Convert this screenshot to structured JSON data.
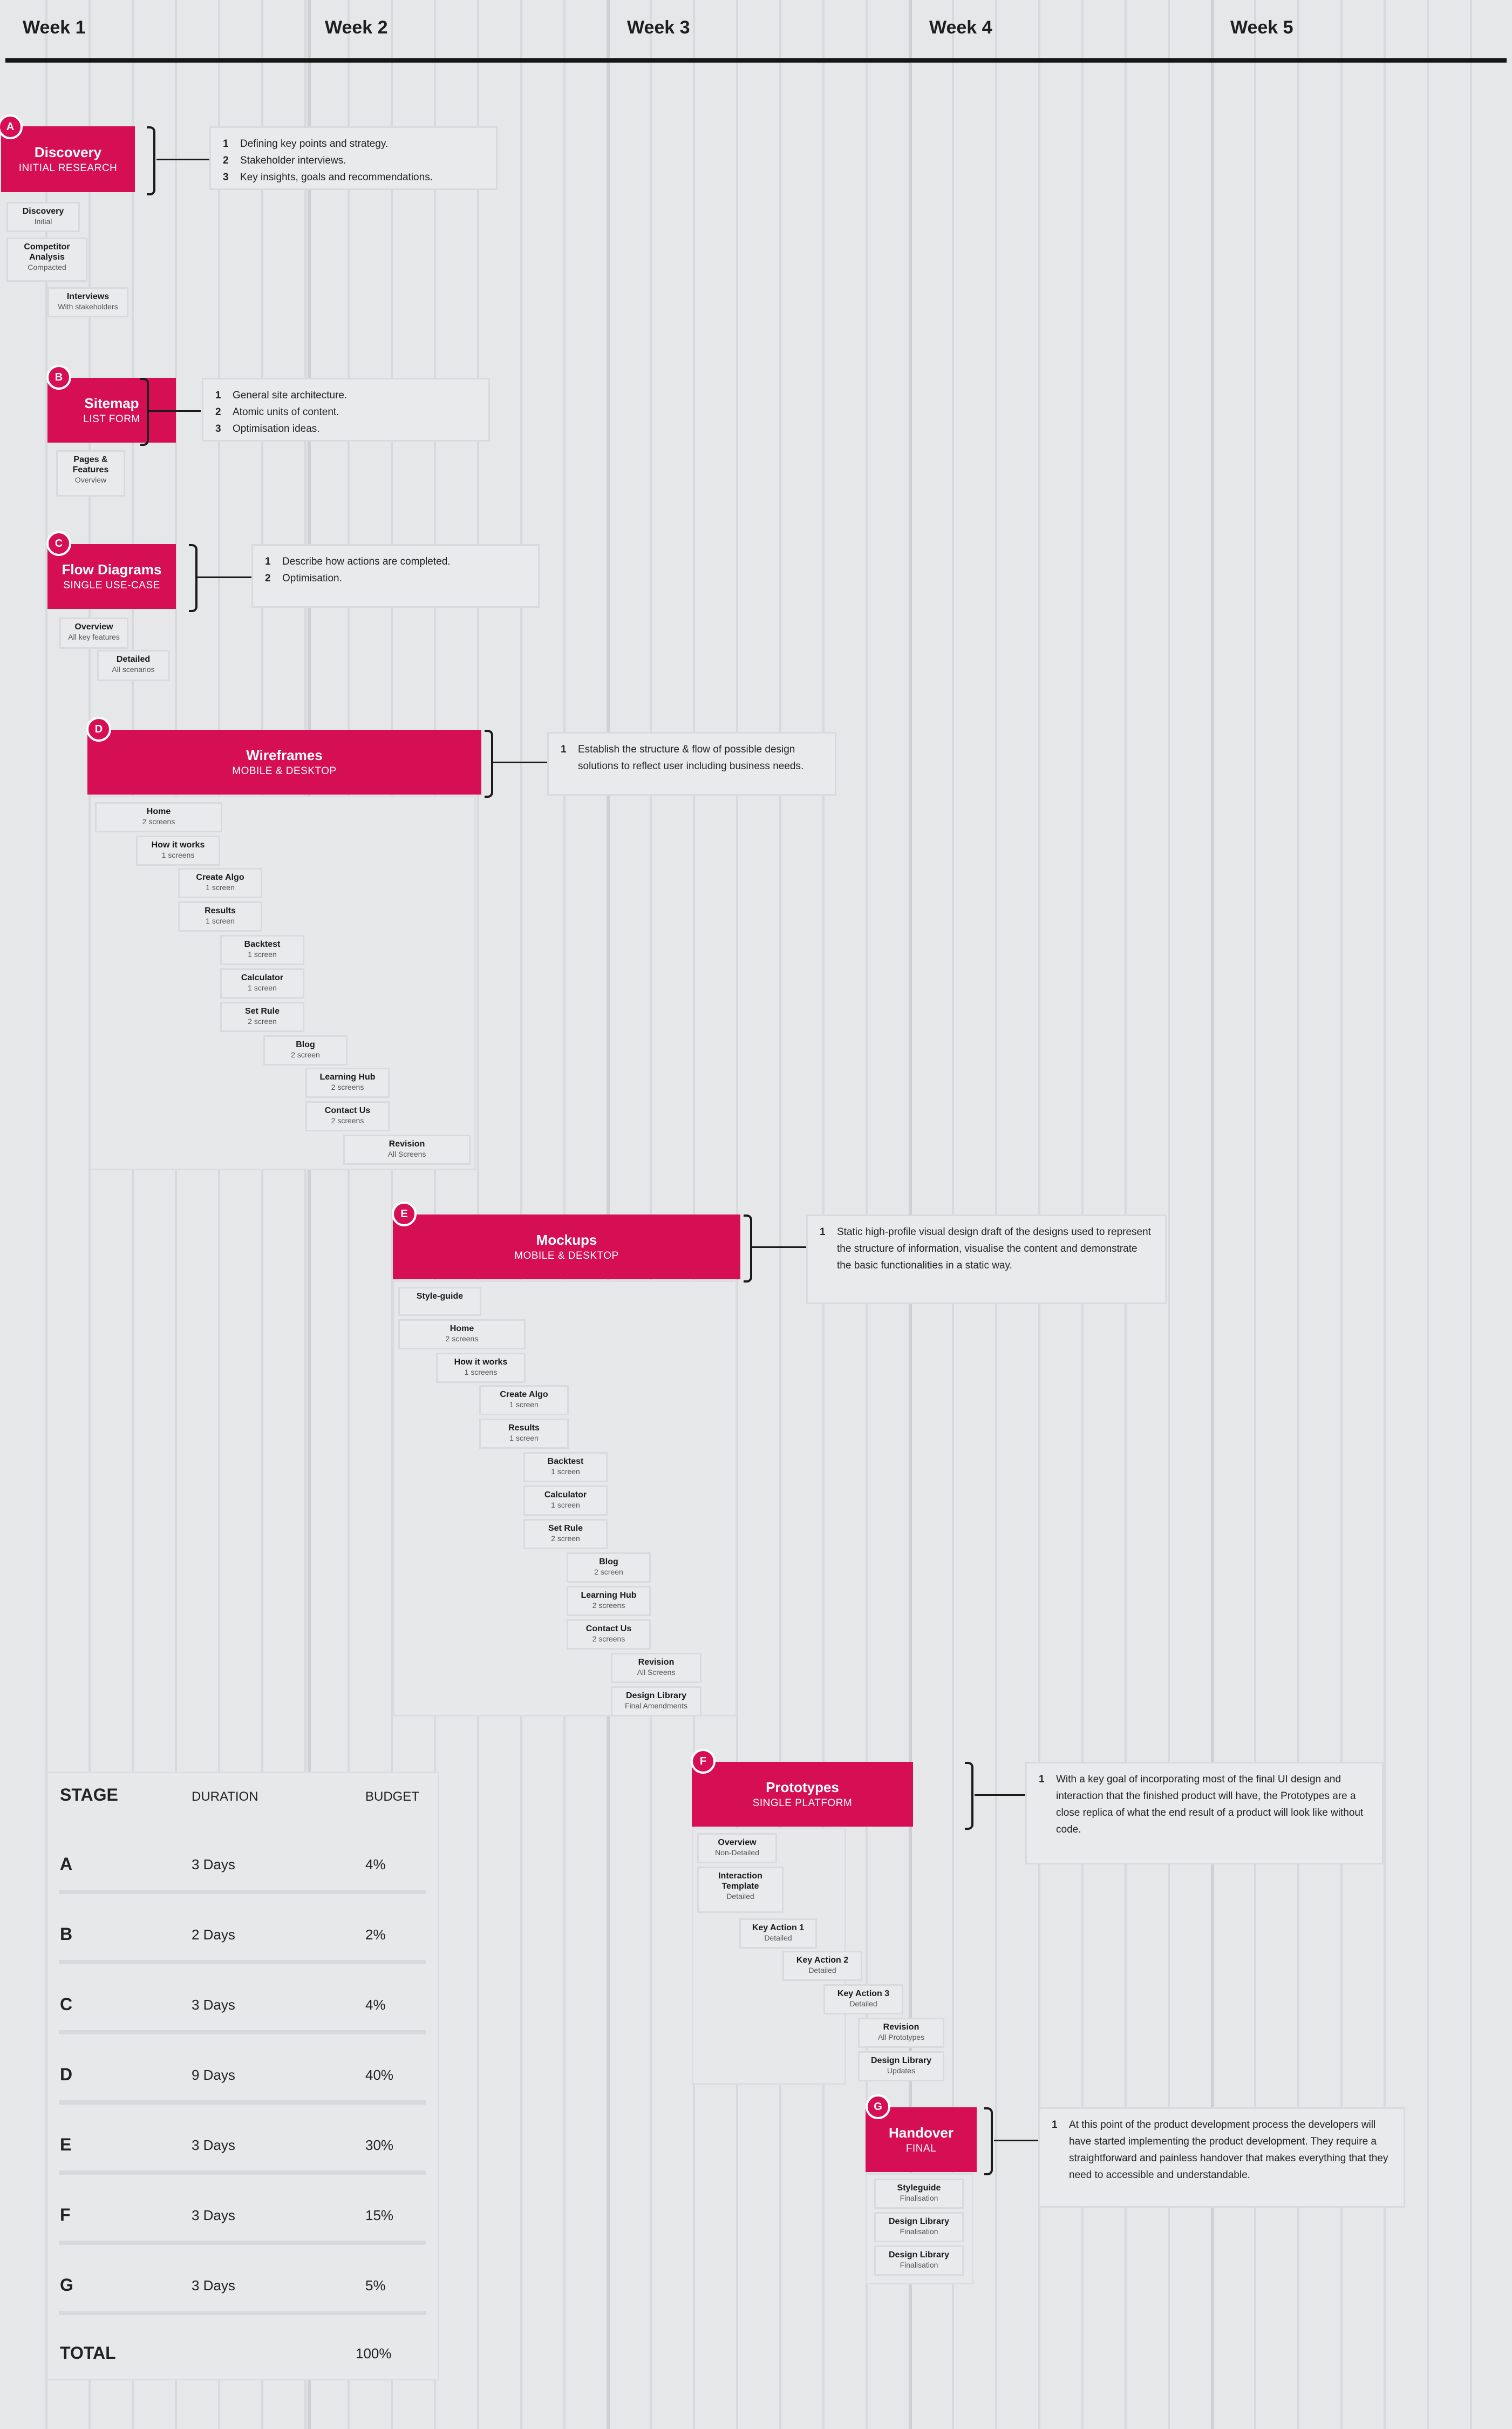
{
  "weeks": [
    "Week 1",
    "Week 2",
    "Week 3",
    "Week 4",
    "Week 5"
  ],
  "stages": {
    "A": {
      "badge": "A",
      "title": "Discovery",
      "subtitle": "INITIAL RESEARCH",
      "notes": [
        {
          "n": "1",
          "text": "Defining key points and strategy."
        },
        {
          "n": "2",
          "text": "Stakeholder interviews."
        },
        {
          "n": "3",
          "text": "Key insights, goals and recommendations."
        }
      ],
      "items": [
        {
          "a": "Discovery",
          "b": "Initial"
        },
        {
          "a": "Competitor Analysis",
          "b": "Compacted"
        },
        {
          "a": "Interviews",
          "b": "With stakeholders"
        }
      ]
    },
    "B": {
      "badge": "B",
      "title": "Sitemap",
      "subtitle": "LIST FORM",
      "notes": [
        {
          "n": "1",
          "text": "General site architecture."
        },
        {
          "n": "2",
          "text": "Atomic units of content."
        },
        {
          "n": "3",
          "text": "Optimisation ideas."
        }
      ],
      "items": [
        {
          "a": "Pages & Features",
          "b": "Overview"
        }
      ]
    },
    "C": {
      "badge": "C",
      "title": "Flow Diagrams",
      "subtitle": "SINGLE USE-CASE",
      "notes": [
        {
          "n": "1",
          "text": "Describe how actions are completed."
        },
        {
          "n": "2",
          "text": "Optimisation."
        }
      ],
      "items": [
        {
          "a": "Overview",
          "b": "All key features"
        },
        {
          "a": "Detailed",
          "b": "All scenarios"
        }
      ]
    },
    "D": {
      "badge": "D",
      "title": "Wireframes",
      "subtitle": "MOBILE & DESKTOP",
      "notes": [
        {
          "n": "1",
          "text": "Establish the structure & flow of possible design solutions to reflect user including business needs."
        }
      ],
      "items": [
        {
          "a": "Home",
          "b": "2 screens"
        },
        {
          "a": "How it works",
          "b": "1 screens"
        },
        {
          "a": "Create Algo",
          "b": "1 screen"
        },
        {
          "a": "Results",
          "b": "1 screen"
        },
        {
          "a": "Backtest",
          "b": "1 screen"
        },
        {
          "a": "Calculator",
          "b": "1 screen"
        },
        {
          "a": "Set Rule",
          "b": "2 screen"
        },
        {
          "a": "Blog",
          "b": "2 screen"
        },
        {
          "a": "Learning Hub",
          "b": "2 screens"
        },
        {
          "a": "Contact Us",
          "b": "2 screens"
        },
        {
          "a": "Revision",
          "b": "All Screens"
        }
      ]
    },
    "E": {
      "badge": "E",
      "title": "Mockups",
      "subtitle": "MOBILE & DESKTOP",
      "notes": [
        {
          "n": "1",
          "text": "Static high-profile visual design draft of the designs used to represent the structure of information, visualise the content and demonstrate the basic functionalities in a static way."
        }
      ],
      "items": [
        {
          "a": "Style-guide",
          "b": ""
        },
        {
          "a": "Home",
          "b": "2 screens"
        },
        {
          "a": "How it works",
          "b": "1 screens"
        },
        {
          "a": "Create Algo",
          "b": "1 screen"
        },
        {
          "a": "Results",
          "b": "1 screen"
        },
        {
          "a": "Backtest",
          "b": "1 screen"
        },
        {
          "a": "Calculator",
          "b": "1 screen"
        },
        {
          "a": "Set Rule",
          "b": "2 screen"
        },
        {
          "a": "Blog",
          "b": "2 screen"
        },
        {
          "a": "Learning Hub",
          "b": "2 screens"
        },
        {
          "a": "Contact Us",
          "b": "2 screens"
        },
        {
          "a": "Revision",
          "b": "All Screens"
        },
        {
          "a": "Design Library",
          "b": "Final Amendments"
        }
      ]
    },
    "F": {
      "badge": "F",
      "title": "Prototypes",
      "subtitle": "SINGLE PLATFORM",
      "notes": [
        {
          "n": "1",
          "text": "With a key goal of incorporating most of the final UI design and interaction that the finished product will have, the Prototypes are a close replica of what the end result of a product will look like without code."
        }
      ],
      "items": [
        {
          "a": "Overview",
          "b": "Non-Detailed"
        },
        {
          "a": "Interaction Template",
          "b": "Detailed"
        },
        {
          "a": "Key Action 1",
          "b": "Detailed"
        },
        {
          "a": "Key Action 2",
          "b": "Detailed"
        },
        {
          "a": "Key Action 3",
          "b": "Detailed"
        },
        {
          "a": "Revision",
          "b": "All Prototypes"
        },
        {
          "a": "Design Library",
          "b": "Updates"
        }
      ]
    },
    "G": {
      "badge": "G",
      "title": "Handover",
      "subtitle": "FINAL",
      "notes": [
        {
          "n": "1",
          "text": "At this point of the product development process the developers will have started implementing the product development. They require a straightforward and painless handover that makes everything that they need to accessible and understandable."
        }
      ],
      "items": [
        {
          "a": "Styleguide",
          "b": "Finalisation"
        },
        {
          "a": "Design Library",
          "b": "Finalisation"
        },
        {
          "a": "Design Library",
          "b": "Finalisation"
        }
      ]
    }
  },
  "budget_table": {
    "headers": {
      "stage": "STAGE",
      "duration": "DURATION",
      "budget": "BUDGET"
    },
    "rows": [
      {
        "stage": "A",
        "duration": "3 Days",
        "budget": "4%"
      },
      {
        "stage": "B",
        "duration": "2 Days",
        "budget": "2%"
      },
      {
        "stage": "C",
        "duration": "3 Days",
        "budget": "4%"
      },
      {
        "stage": "D",
        "duration": "9 Days",
        "budget": "40%"
      },
      {
        "stage": "E",
        "duration": "3 Days",
        "budget": "30%"
      },
      {
        "stage": "F",
        "duration": "3 Days",
        "budget": "15%"
      },
      {
        "stage": "G",
        "duration": "3 Days",
        "budget": "5%"
      }
    ],
    "total": {
      "label": "TOTAL",
      "budget": "100%"
    }
  },
  "colors": {
    "accent": "#d60f55",
    "background": "#e6e7e9",
    "line": "#151515"
  }
}
